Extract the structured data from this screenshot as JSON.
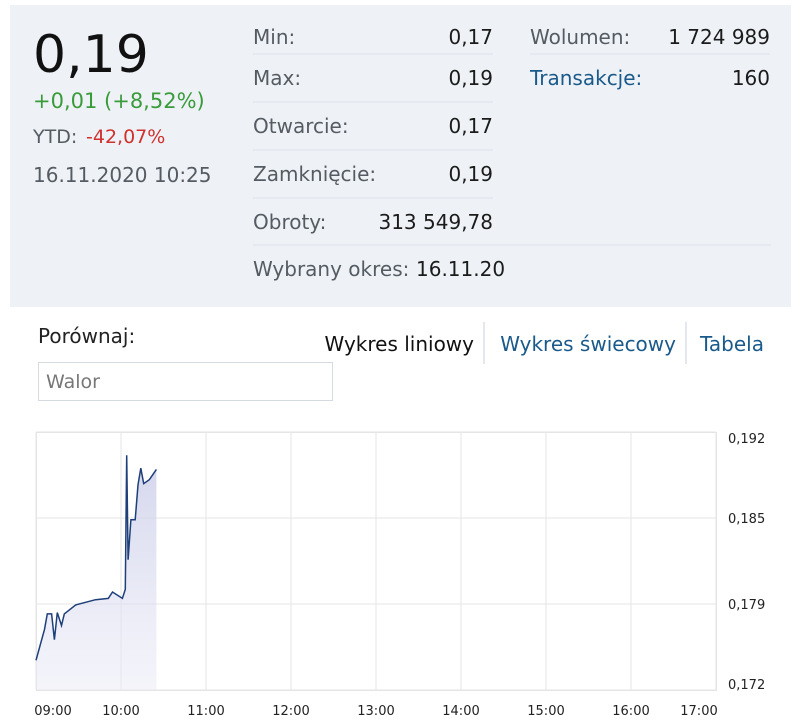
{
  "quote": {
    "price": "0,19",
    "change": "+0,01 (+8,52%)",
    "ytd_label": "YTD:",
    "ytd": "-42,07%",
    "datetime": "16.11.2020 10:25"
  },
  "stats": [
    {
      "label": "Min:",
      "value": "0,17"
    },
    {
      "label": "Max:",
      "value": "0,19"
    },
    {
      "label": "Otwarcie:",
      "value": "0,17"
    },
    {
      "label": "Zamknięcie:",
      "value": "0,19"
    },
    {
      "label": "Obroty:",
      "value": "313 549,78"
    }
  ],
  "stats2": [
    {
      "label": "Wolumen:",
      "value": "1 724 989"
    },
    {
      "label": "Transakcje:",
      "value": "160"
    }
  ],
  "period": {
    "label": "Wybrany okres:",
    "value": "16.11.20"
  },
  "compare": {
    "label": "Porównaj:",
    "placeholder": "Walor"
  },
  "tabs": [
    "Wykres liniowy",
    "Wykres świecowy",
    "Tabela"
  ],
  "chart_data": {
    "type": "line",
    "x": [
      "09:00",
      "09:06",
      "09:08",
      "09:11",
      "09:13",
      "09:15",
      "09:18",
      "09:20",
      "09:28",
      "09:35",
      "09:42",
      "09:51",
      "09:54",
      "10:01",
      "10:03",
      "10:04",
      "10:05",
      "10:07",
      "10:10",
      "10:12",
      "10:14",
      "10:16",
      "10:20",
      "10:25"
    ],
    "series": [
      {
        "color": "#1f3f7a",
        "values": [
          0.1743,
          0.1767,
          0.1779,
          0.1779,
          0.1759,
          0.178,
          0.177,
          0.1779,
          0.1786,
          0.1788,
          0.179,
          0.1791,
          0.1796,
          0.1791,
          0.1798,
          0.1902,
          0.1821,
          0.1852,
          0.1852,
          0.1879,
          0.1892,
          0.188,
          0.1883,
          0.1891
        ]
      }
    ],
    "xlim": [
      "09:00",
      "17:00"
    ],
    "xticks": [
      "09:00",
      "10:00",
      "11:00",
      "12:00",
      "13:00",
      "14:00",
      "15:00",
      "16:00",
      "17:00"
    ],
    "ylim": [
      0.172,
      0.192
    ],
    "yticks": [
      {
        "value": 0.172,
        "label": "0,172"
      },
      {
        "value": 0.17867,
        "label": "0,179"
      },
      {
        "value": 0.18533,
        "label": "0,185"
      },
      {
        "value": 0.192,
        "label": "0,192"
      }
    ],
    "grid": true,
    "fill": true
  }
}
